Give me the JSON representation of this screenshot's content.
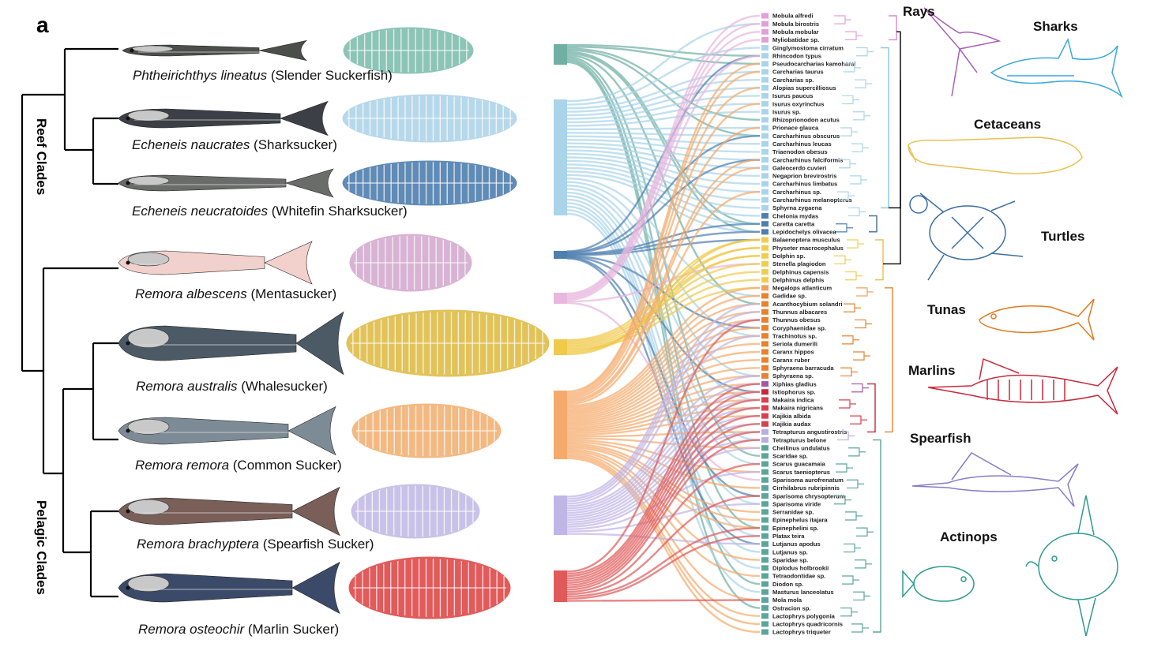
{
  "panel_letter": "a",
  "clades": {
    "reef": "Reef Clades",
    "pelagic": "Pelagic Clades"
  },
  "remoras": [
    {
      "latin": "Phtheirichthys lineatus",
      "common": "(Slender Suckerfish)",
      "disc_color": "#8cc4b6",
      "body_color": "#4a4f4a"
    },
    {
      "latin": "Echeneis naucrates",
      "common": "(Sharksucker)",
      "disc_color": "#b7d8ea",
      "body_color": "#3c4046"
    },
    {
      "latin": "Echeneis neucratoides",
      "common": "(Whitefin Sharksucker)",
      "disc_color": "#5f8bb6",
      "body_color": "#6a6c6a"
    },
    {
      "latin": "Remora albescens",
      "common": "(Mentasucker)",
      "disc_color": "#d8b3d4",
      "body_color": "#f2d0cc"
    },
    {
      "latin": "Remora australis",
      "common": "(Whalesucker)",
      "disc_color": "#e2c35a",
      "body_color": "#4c5a66"
    },
    {
      "latin": "Remora remora",
      "common": "(Common Sucker)",
      "disc_color": "#f3b982",
      "body_color": "#7d8b96"
    },
    {
      "latin": "Remora brachyptera",
      "common": "(Spearfish Sucker)",
      "disc_color": "#c9c2e8",
      "body_color": "#7a5e58"
    },
    {
      "latin": "Remora osteochir",
      "common": "(Marlin Sucker)",
      "disc_color": "#e25a5a",
      "body_color": "#3c4a6a"
    }
  ],
  "hosts": [
    {
      "name": "Mobula alfredi",
      "color": "#e2a0d6"
    },
    {
      "name": "Mobula birostris",
      "color": "#e2a0d6"
    },
    {
      "name": "Mobula mobular",
      "color": "#e2a0d6"
    },
    {
      "name": "Myliobatidae sp.",
      "color": "#e2a0d6"
    },
    {
      "name": "Ginglymostoma cirratum",
      "color": "#a9d4ea"
    },
    {
      "name": "Rhincodon typus",
      "color": "#a9d4ea"
    },
    {
      "name": "Pseudocarcharias kamoharai",
      "color": "#a9d4ea"
    },
    {
      "name": "Carcharias taurus",
      "color": "#a9d4ea"
    },
    {
      "name": "Carcharias sp.",
      "color": "#a9d4ea"
    },
    {
      "name": "Alopias supercilliosus",
      "color": "#a9d4ea"
    },
    {
      "name": "Isurus paucus",
      "color": "#a9d4ea"
    },
    {
      "name": "Isurus oxyrinchus",
      "color": "#a9d4ea"
    },
    {
      "name": "Isurus sp.",
      "color": "#a9d4ea"
    },
    {
      "name": "Rhizoprionodon acutus",
      "color": "#a9d4ea"
    },
    {
      "name": "Prionace glauca",
      "color": "#a9d4ea"
    },
    {
      "name": "Carcharhinus obscurus",
      "color": "#a9d4ea"
    },
    {
      "name": "Carcharhinus leucas",
      "color": "#a9d4ea"
    },
    {
      "name": "Triaenodon obesus",
      "color": "#a9d4ea"
    },
    {
      "name": "Carcharhinus falciformis",
      "color": "#a9d4ea"
    },
    {
      "name": "Galeocerdo cuvieri",
      "color": "#a9d4ea"
    },
    {
      "name": "Negaprion brevirostris",
      "color": "#a9d4ea"
    },
    {
      "name": "Carcharhinus limbatus",
      "color": "#a9d4ea"
    },
    {
      "name": "Carcharhinus sp.",
      "color": "#a9d4ea"
    },
    {
      "name": "Carcharhinus melanopterus",
      "color": "#a9d4ea"
    },
    {
      "name": "Sphyrna zygaena",
      "color": "#a9d4ea"
    },
    {
      "name": "Chelonia mydas",
      "color": "#4f7fb0"
    },
    {
      "name": "Caretta caretta",
      "color": "#4f7fb0"
    },
    {
      "name": "Lepidochelys olivacea",
      "color": "#4f7fb0"
    },
    {
      "name": "Balaenoptera musculus",
      "color": "#f0cc50"
    },
    {
      "name": "Physeter macrocephalus",
      "color": "#f0cc50"
    },
    {
      "name": "Dolphin sp.",
      "color": "#f0cc50"
    },
    {
      "name": "Stenella plagiodon",
      "color": "#f0cc50"
    },
    {
      "name": "Delphinus capensis",
      "color": "#f0cc50"
    },
    {
      "name": "Delphinus delphis",
      "color": "#f0cc50"
    },
    {
      "name": "Megalops atlanticum",
      "color": "#f0a060"
    },
    {
      "name": "Gadidae sp.",
      "color": "#e8822e"
    },
    {
      "name": "Acanthocybium solandri",
      "color": "#e8822e"
    },
    {
      "name": "Thunnus albacares",
      "color": "#e8822e"
    },
    {
      "name": "Thunnus obesus",
      "color": "#e8822e"
    },
    {
      "name": "Coryphaenidae sp.",
      "color": "#e8822e"
    },
    {
      "name": "Trachinotus sp.",
      "color": "#e8822e"
    },
    {
      "name": "Seriola dumerili",
      "color": "#e8822e"
    },
    {
      "name": "Caranx hippos",
      "color": "#e8822e"
    },
    {
      "name": "Caranx ruber",
      "color": "#e8822e"
    },
    {
      "name": "Sphyraena barracuda",
      "color": "#e8822e"
    },
    {
      "name": "Sphyraena sp.",
      "color": "#e8822e"
    },
    {
      "name": "Xiphias gladius",
      "color": "#a05aa0"
    },
    {
      "name": "Istiophorus sp.",
      "color": "#c8283c"
    },
    {
      "name": "Makaira indica",
      "color": "#d84050"
    },
    {
      "name": "Makaira nigricans",
      "color": "#d84050"
    },
    {
      "name": "Kajikia albida",
      "color": "#d84050"
    },
    {
      "name": "Kajikia audax",
      "color": "#d84050"
    },
    {
      "name": "Tetrapturus angustirostris",
      "color": "#b8aee0"
    },
    {
      "name": "Tetrapturus belone",
      "color": "#b8aee0"
    },
    {
      "name": "Cheilinus undulatus",
      "color": "#5aa69a"
    },
    {
      "name": "Scaridae sp.",
      "color": "#5aa69a"
    },
    {
      "name": "Scarus guacamaia",
      "color": "#5aa69a"
    },
    {
      "name": "Scarus taeniopterus",
      "color": "#5aa69a"
    },
    {
      "name": "Sparisoma aurofrenatum",
      "color": "#5aa69a"
    },
    {
      "name": "Cirrhilabrus rubripinnis",
      "color": "#5aa69a"
    },
    {
      "name": "Sparisoma chrysopterum",
      "color": "#5aa69a"
    },
    {
      "name": "Sparisoma viride",
      "color": "#5aa69a"
    },
    {
      "name": "Serranidae sp.",
      "color": "#5aa69a"
    },
    {
      "name": "Epinephelus itajara",
      "color": "#5aa69a"
    },
    {
      "name": "Epinephelini sp.",
      "color": "#5aa69a"
    },
    {
      "name": "Platax teira",
      "color": "#5aa69a"
    },
    {
      "name": "Lutjanus apodus",
      "color": "#5aa69a"
    },
    {
      "name": "Lutjanus sp.",
      "color": "#5aa69a"
    },
    {
      "name": "Sparidae sp.",
      "color": "#5aa69a"
    },
    {
      "name": "Diplodus holbrookii",
      "color": "#5aa69a"
    },
    {
      "name": "Tetraodontidae sp.",
      "color": "#5aa69a"
    },
    {
      "name": "Diodon sp.",
      "color": "#5aa69a"
    },
    {
      "name": "Masturus lanceolatus",
      "color": "#5aa69a"
    },
    {
      "name": "Mola mola",
      "color": "#5aa69a"
    },
    {
      "name": "Ostracion sp.",
      "color": "#5aa69a"
    },
    {
      "name": "Lactophrys polygonia",
      "color": "#5aa69a"
    },
    {
      "name": "Lactophrys quadricornis",
      "color": "#5aa69a"
    },
    {
      "name": "Lactophrys triqueter",
      "color": "#5aa69a"
    }
  ],
  "host_groups": [
    {
      "label": "Rays",
      "color": "#a662b6",
      "icon": "ray-icon"
    },
    {
      "label": "Sharks",
      "color": "#3aa8d8",
      "icon": "shark-icon"
    },
    {
      "label": "Cetaceans",
      "color": "#e8c050",
      "icon": "whale-icon"
    },
    {
      "label": "Turtles",
      "color": "#3c6ea0",
      "icon": "turtle-icon"
    },
    {
      "label": "Tunas",
      "color": "#e07a20",
      "icon": "tuna-icon"
    },
    {
      "label": "Marlins",
      "color": "#c8283c",
      "icon": "marlin-icon"
    },
    {
      "label": "Spearfish",
      "color": "#8a7cc8",
      "icon": "spearfish-icon"
    },
    {
      "label": "Actinops",
      "color": "#2e9a8e",
      "icon": "actinop-icon"
    }
  ]
}
